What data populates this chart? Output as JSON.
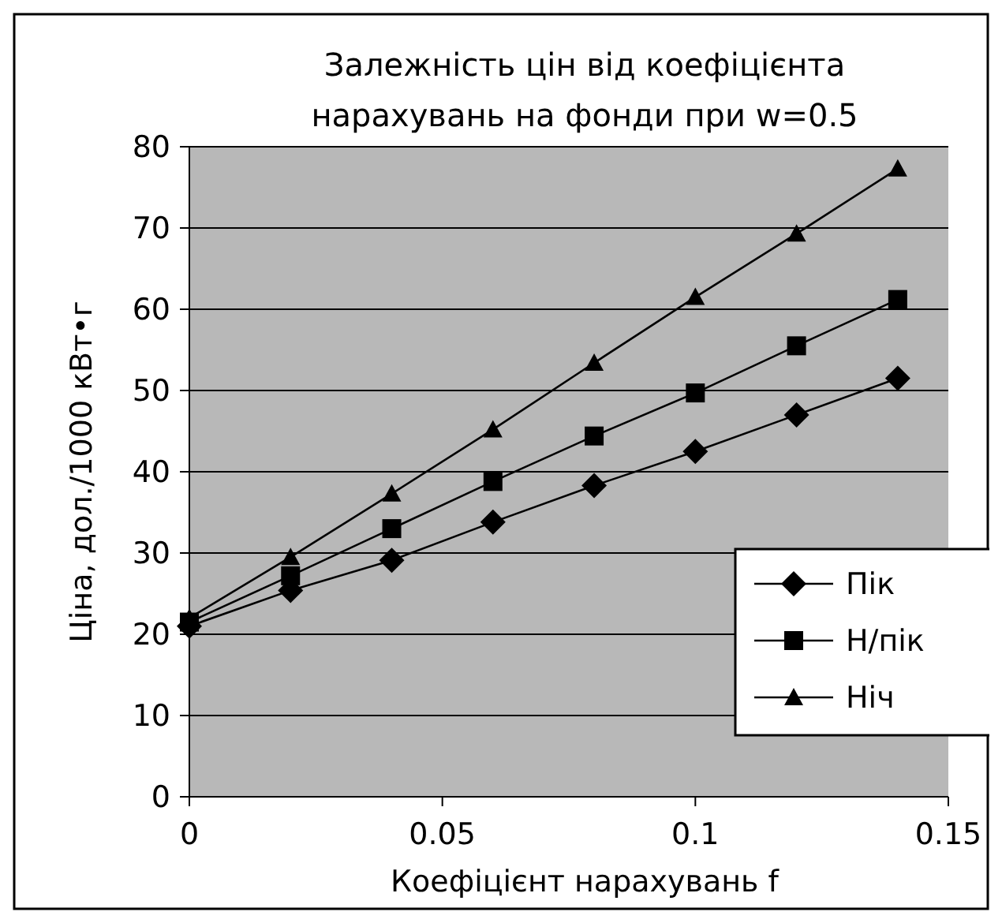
{
  "chart_data": {
    "type": "line",
    "title": "Залежність цін від коефіцієнта нарахувань на фонди при w=0.5",
    "xlabel": "Коефіцієнт нарахувань f",
    "ylabel": "Ціна, дол./1000 кВт•г",
    "x": [
      0,
      0.02,
      0.04,
      0.06,
      0.08,
      0.1,
      0.12,
      0.14
    ],
    "series": [
      {
        "name": "Пік",
        "color": "#000000",
        "marker": "diamond",
        "values": [
          21,
          25.4,
          29.1,
          33.8,
          38.3,
          42.5,
          47,
          51.5
        ]
      },
      {
        "name": "Н/пік",
        "color": "#000000",
        "marker": "square",
        "values": [
          21.5,
          27.2,
          33,
          38.8,
          44.4,
          49.7,
          55.5,
          61.2
        ]
      },
      {
        "name": "Ніч",
        "color": "#000000",
        "marker": "triangle",
        "values": [
          22,
          29.5,
          37.3,
          45.2,
          53.4,
          61.5,
          69.3,
          77.3
        ]
      }
    ],
    "xlim": [
      0,
      0.15
    ],
    "xticks": [
      0,
      0.05,
      0.1,
      0.15
    ],
    "ylim": [
      0,
      80
    ],
    "yticks": [
      0,
      10,
      20,
      30,
      40,
      50,
      60,
      70,
      80
    ],
    "grid": "y",
    "legend": "bottom right",
    "line_style": "solid"
  }
}
